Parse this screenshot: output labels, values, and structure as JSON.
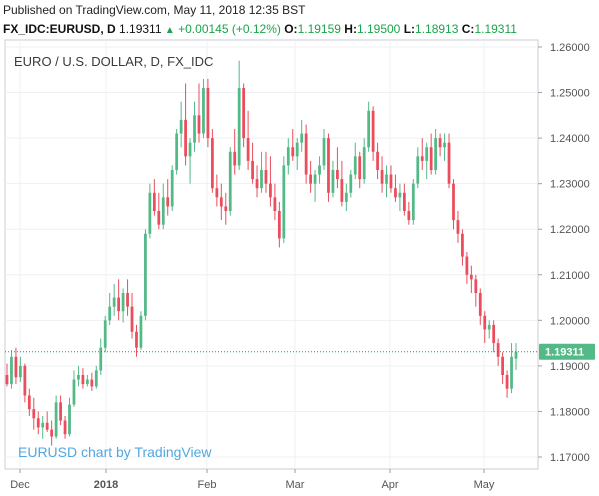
{
  "header": {
    "published": "Published on TradingView.com, May 11, 2018 12:35 BST",
    "symbol": "FX_IDC:EURUSD, D",
    "last": "1.19311",
    "change": "+0.00145 (+0.12%)",
    "open_label": "O:",
    "open": "1.19159",
    "high_label": "H:",
    "high": "1.19500",
    "low_label": "L:",
    "low": "1.18913",
    "close_label": "C:",
    "close": "1.19311"
  },
  "chart_data": {
    "type": "candlestick",
    "title": "EURO / U.S. DOLLAR, D, FX_IDC",
    "watermark": "EURUSD chart by TradingView",
    "ylim": [
      1.166,
      1.2625
    ],
    "y_ticks": [
      "1.17000",
      "1.18000",
      "1.19000",
      "1.20000",
      "1.21000",
      "1.22000",
      "1.23000",
      "1.24000",
      "1.25000",
      "1.26000"
    ],
    "x_ticks": [
      "Dec",
      "2018",
      "Feb",
      "Mar",
      "Apr",
      "May"
    ],
    "last_price_label": "1.19311",
    "last_price": 1.19311,
    "colors": {
      "up": "#53b987",
      "down": "#eb4d5c",
      "last_line": "#2e8a57"
    },
    "candles": [
      [
        1.188,
        1.1905,
        1.1855,
        1.186
      ],
      [
        1.186,
        1.1935,
        1.185,
        1.192
      ],
      [
        1.192,
        1.194,
        1.186,
        1.1875
      ],
      [
        1.1875,
        1.192,
        1.1865,
        1.19
      ],
      [
        1.19,
        1.1905,
        1.182,
        1.1835
      ],
      [
        1.1835,
        1.185,
        1.179,
        1.1805
      ],
      [
        1.1805,
        1.183,
        1.176,
        1.1785
      ],
      [
        1.1785,
        1.18,
        1.175,
        1.1765
      ],
      [
        1.1765,
        1.179,
        1.174,
        1.1775
      ],
      [
        1.1775,
        1.18,
        1.1755,
        1.176
      ],
      [
        1.176,
        1.178,
        1.1725,
        1.1745
      ],
      [
        1.1745,
        1.1835,
        1.174,
        1.182
      ],
      [
        1.182,
        1.1835,
        1.177,
        1.178
      ],
      [
        1.178,
        1.179,
        1.174,
        1.175
      ],
      [
        1.175,
        1.183,
        1.1745,
        1.1815
      ],
      [
        1.1815,
        1.189,
        1.181,
        1.187
      ],
      [
        1.187,
        1.19,
        1.1855,
        1.188
      ],
      [
        1.188,
        1.1895,
        1.185,
        1.186
      ],
      [
        1.186,
        1.188,
        1.1855,
        1.187
      ],
      [
        1.187,
        1.1885,
        1.1845,
        1.1855
      ],
      [
        1.1855,
        1.19,
        1.185,
        1.189
      ],
      [
        1.189,
        1.196,
        1.188,
        1.194
      ],
      [
        1.194,
        1.201,
        1.193,
        1.2
      ],
      [
        1.2,
        1.206,
        1.199,
        1.203
      ],
      [
        1.203,
        1.208,
        1.201,
        1.205
      ],
      [
        1.205,
        1.209,
        1.2,
        1.202
      ],
      [
        1.202,
        1.207,
        1.1995,
        1.206
      ],
      [
        1.206,
        1.209,
        1.201,
        1.203
      ],
      [
        1.203,
        1.206,
        1.196,
        1.1975
      ],
      [
        1.1975,
        1.199,
        1.192,
        1.194
      ],
      [
        1.194,
        1.202,
        1.1935,
        1.201
      ],
      [
        1.201,
        1.22,
        1.2,
        1.219
      ],
      [
        1.219,
        1.23,
        1.218,
        1.228
      ],
      [
        1.228,
        1.231,
        1.223,
        1.224
      ],
      [
        1.224,
        1.228,
        1.22,
        1.221
      ],
      [
        1.221,
        1.23,
        1.22,
        1.227
      ],
      [
        1.227,
        1.231,
        1.223,
        1.225
      ],
      [
        1.225,
        1.234,
        1.224,
        1.233
      ],
      [
        1.233,
        1.242,
        1.232,
        1.241
      ],
      [
        1.241,
        1.248,
        1.238,
        1.244
      ],
      [
        1.244,
        1.252,
        1.234,
        1.236
      ],
      [
        1.236,
        1.24,
        1.23,
        1.239
      ],
      [
        1.239,
        1.248,
        1.237,
        1.245
      ],
      [
        1.245,
        1.252,
        1.239,
        1.241
      ],
      [
        1.241,
        1.253,
        1.24,
        1.251
      ],
      [
        1.251,
        1.253,
        1.238,
        1.24
      ],
      [
        1.24,
        1.242,
        1.228,
        1.229
      ],
      [
        1.229,
        1.232,
        1.225,
        1.227
      ],
      [
        1.227,
        1.23,
        1.222,
        1.225
      ],
      [
        1.225,
        1.228,
        1.221,
        1.224
      ],
      [
        1.224,
        1.238,
        1.223,
        1.237
      ],
      [
        1.237,
        1.242,
        1.232,
        1.234
      ],
      [
        1.234,
        1.257,
        1.233,
        1.251
      ],
      [
        1.251,
        1.252,
        1.238,
        1.24
      ],
      [
        1.24,
        1.246,
        1.233,
        1.235
      ],
      [
        1.235,
        1.239,
        1.23,
        1.231
      ],
      [
        1.231,
        1.234,
        1.227,
        1.229
      ],
      [
        1.229,
        1.237,
        1.228,
        1.233
      ],
      [
        1.233,
        1.237,
        1.228,
        1.23
      ],
      [
        1.23,
        1.236,
        1.225,
        1.227
      ],
      [
        1.227,
        1.23,
        1.222,
        1.224
      ],
      [
        1.224,
        1.226,
        1.216,
        1.218
      ],
      [
        1.218,
        1.236,
        1.217,
        1.234
      ],
      [
        1.234,
        1.24,
        1.232,
        1.238
      ],
      [
        1.238,
        1.242,
        1.235,
        1.236
      ],
      [
        1.236,
        1.24,
        1.233,
        1.239
      ],
      [
        1.239,
        1.244,
        1.237,
        1.241
      ],
      [
        1.241,
        1.243,
        1.23,
        1.232
      ],
      [
        1.232,
        1.235,
        1.228,
        1.23
      ],
      [
        1.23,
        1.233,
        1.226,
        1.232
      ],
      [
        1.232,
        1.236,
        1.23,
        1.234
      ],
      [
        1.234,
        1.242,
        1.233,
        1.24
      ],
      [
        1.24,
        1.241,
        1.226,
        1.228
      ],
      [
        1.228,
        1.235,
        1.227,
        1.233
      ],
      [
        1.233,
        1.238,
        1.229,
        1.231
      ],
      [
        1.231,
        1.235,
        1.225,
        1.226
      ],
      [
        1.226,
        1.23,
        1.224,
        1.228
      ],
      [
        1.228,
        1.233,
        1.227,
        1.232
      ],
      [
        1.232,
        1.239,
        1.231,
        1.236
      ],
      [
        1.236,
        1.237,
        1.229,
        1.231
      ],
      [
        1.231,
        1.24,
        1.23,
        1.238
      ],
      [
        1.238,
        1.248,
        1.237,
        1.246
      ],
      [
        1.246,
        1.247,
        1.235,
        1.237
      ],
      [
        1.237,
        1.239,
        1.231,
        1.233
      ],
      [
        1.233,
        1.236,
        1.228,
        1.23
      ],
      [
        1.23,
        1.234,
        1.227,
        1.232
      ],
      [
        1.232,
        1.234,
        1.228,
        1.229
      ],
      [
        1.229,
        1.232,
        1.226,
        1.227
      ],
      [
        1.227,
        1.23,
        1.224,
        1.228
      ],
      [
        1.228,
        1.23,
        1.223,
        1.224
      ],
      [
        1.224,
        1.226,
        1.221,
        1.222
      ],
      [
        1.222,
        1.231,
        1.221,
        1.23
      ],
      [
        1.23,
        1.238,
        1.229,
        1.236
      ],
      [
        1.236,
        1.24,
        1.233,
        1.235
      ],
      [
        1.235,
        1.239,
        1.231,
        1.238
      ],
      [
        1.238,
        1.241,
        1.232,
        1.233
      ],
      [
        1.233,
        1.242,
        1.232,
        1.24
      ],
      [
        1.24,
        1.241,
        1.236,
        1.238
      ],
      [
        1.238,
        1.241,
        1.235,
        1.239
      ],
      [
        1.239,
        1.241,
        1.229,
        1.23
      ],
      [
        1.23,
        1.231,
        1.22,
        1.222
      ],
      [
        1.222,
        1.224,
        1.217,
        1.219
      ],
      [
        1.219,
        1.22,
        1.212,
        1.214
      ],
      [
        1.214,
        1.215,
        1.208,
        1.21
      ],
      [
        1.21,
        1.212,
        1.206,
        1.209
      ],
      [
        1.209,
        1.21,
        1.203,
        1.206
      ],
      [
        1.206,
        1.207,
        1.199,
        1.201
      ],
      [
        1.201,
        1.202,
        1.195,
        1.198
      ],
      [
        1.198,
        1.2,
        1.196,
        1.199
      ],
      [
        1.199,
        1.2,
        1.193,
        1.195
      ],
      [
        1.195,
        1.196,
        1.19,
        1.192
      ],
      [
        1.192,
        1.193,
        1.186,
        1.188
      ],
      [
        1.188,
        1.189,
        1.183,
        1.185
      ],
      [
        1.185,
        1.195,
        1.184,
        1.192
      ],
      [
        1.1916,
        1.195,
        1.1891,
        1.1931
      ]
    ]
  }
}
